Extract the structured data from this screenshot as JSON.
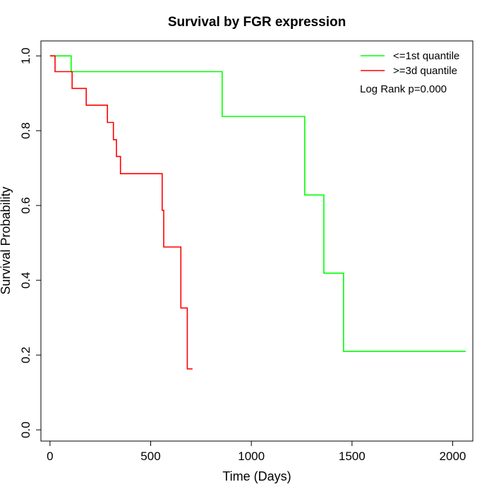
{
  "chart_data": {
    "type": "line",
    "title": "Survival by FGR expression",
    "xlabel": "Time (Days)",
    "ylabel": "Survival Probability",
    "xlim": [
      -45,
      2100
    ],
    "ylim": [
      -0.03,
      1.04
    ],
    "xticks": [
      0,
      500,
      1000,
      1500,
      2000
    ],
    "yticks": [
      0.0,
      0.2,
      0.4,
      0.6,
      0.8,
      1.0
    ],
    "xtick_labels": [
      "0",
      "500",
      "1000",
      "1500",
      "2000"
    ],
    "ytick_labels": [
      "0.0",
      "0.2",
      "0.4",
      "0.6",
      "0.8",
      "1.0"
    ],
    "grid": false,
    "legend_position": "top-right",
    "annotation": "Log Rank p=0.000",
    "series": [
      {
        "name": "<=1st quantile",
        "color": "#00ff00",
        "step": true,
        "points": [
          [
            0,
            1.0
          ],
          [
            105,
            1.0
          ],
          [
            105,
            0.958
          ],
          [
            855,
            0.958
          ],
          [
            855,
            0.838
          ],
          [
            1265,
            0.838
          ],
          [
            1265,
            0.628
          ],
          [
            1360,
            0.628
          ],
          [
            1360,
            0.419
          ],
          [
            1458,
            0.419
          ],
          [
            1458,
            0.21
          ],
          [
            2065,
            0.21
          ]
        ]
      },
      {
        "name": ">=3d quantile",
        "color": "#ff0000",
        "step": true,
        "points": [
          [
            0,
            1.0
          ],
          [
            25,
            1.0
          ],
          [
            25,
            0.958
          ],
          [
            110,
            0.958
          ],
          [
            110,
            0.913
          ],
          [
            180,
            0.913
          ],
          [
            180,
            0.868
          ],
          [
            285,
            0.868
          ],
          [
            285,
            0.822
          ],
          [
            315,
            0.822
          ],
          [
            315,
            0.776
          ],
          [
            330,
            0.776
          ],
          [
            330,
            0.731
          ],
          [
            350,
            0.731
          ],
          [
            350,
            0.685
          ],
          [
            557,
            0.685
          ],
          [
            557,
            0.587
          ],
          [
            565,
            0.587
          ],
          [
            565,
            0.489
          ],
          [
            650,
            0.489
          ],
          [
            650,
            0.326
          ],
          [
            682,
            0.326
          ],
          [
            682,
            0.163
          ],
          [
            708,
            0.163
          ]
        ]
      }
    ]
  }
}
